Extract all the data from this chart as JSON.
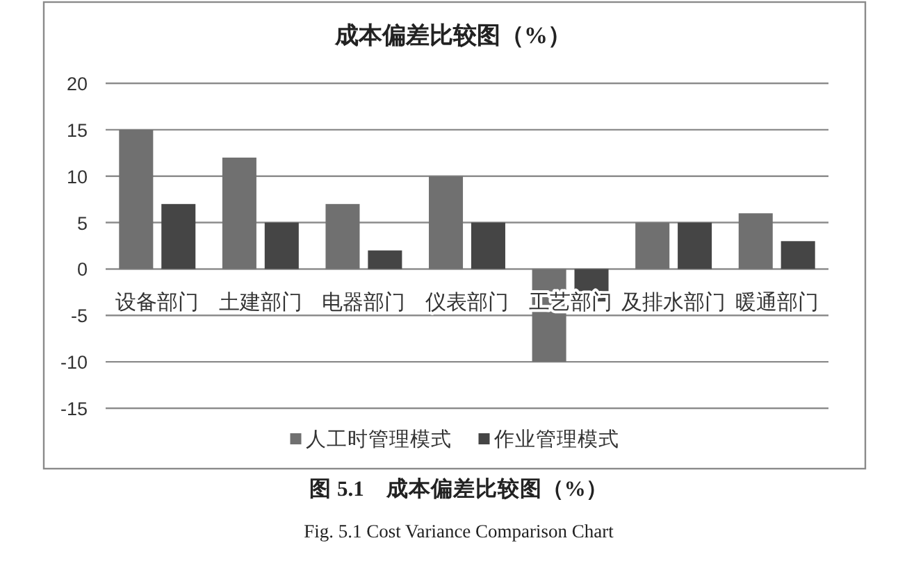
{
  "chart_data": {
    "type": "bar",
    "title": "成本偏差比较图（%）",
    "categories": [
      "设备部门",
      "土建部门",
      "电器部门",
      "仪表部门",
      "工艺部门",
      "及排水部门",
      "暖通部门"
    ],
    "series": [
      {
        "name": "人工时管理模式",
        "color": "#707070",
        "values": [
          15,
          12,
          7,
          10,
          -10,
          5,
          6
        ]
      },
      {
        "name": "作业管理模式",
        "color": "#454545",
        "values": [
          7,
          5,
          2,
          5,
          -3.5,
          5,
          3
        ]
      }
    ],
    "ylim": [
      -15,
      20
    ],
    "yticks": [
      -15,
      -10,
      -5,
      0,
      5,
      10,
      15,
      20
    ],
    "grid": "y",
    "legend": "bottom",
    "annotations": [
      "图 5.1　成本偏差比较图（%）",
      "Fig. 5.1 Cost Variance Comparison Chart"
    ]
  }
}
